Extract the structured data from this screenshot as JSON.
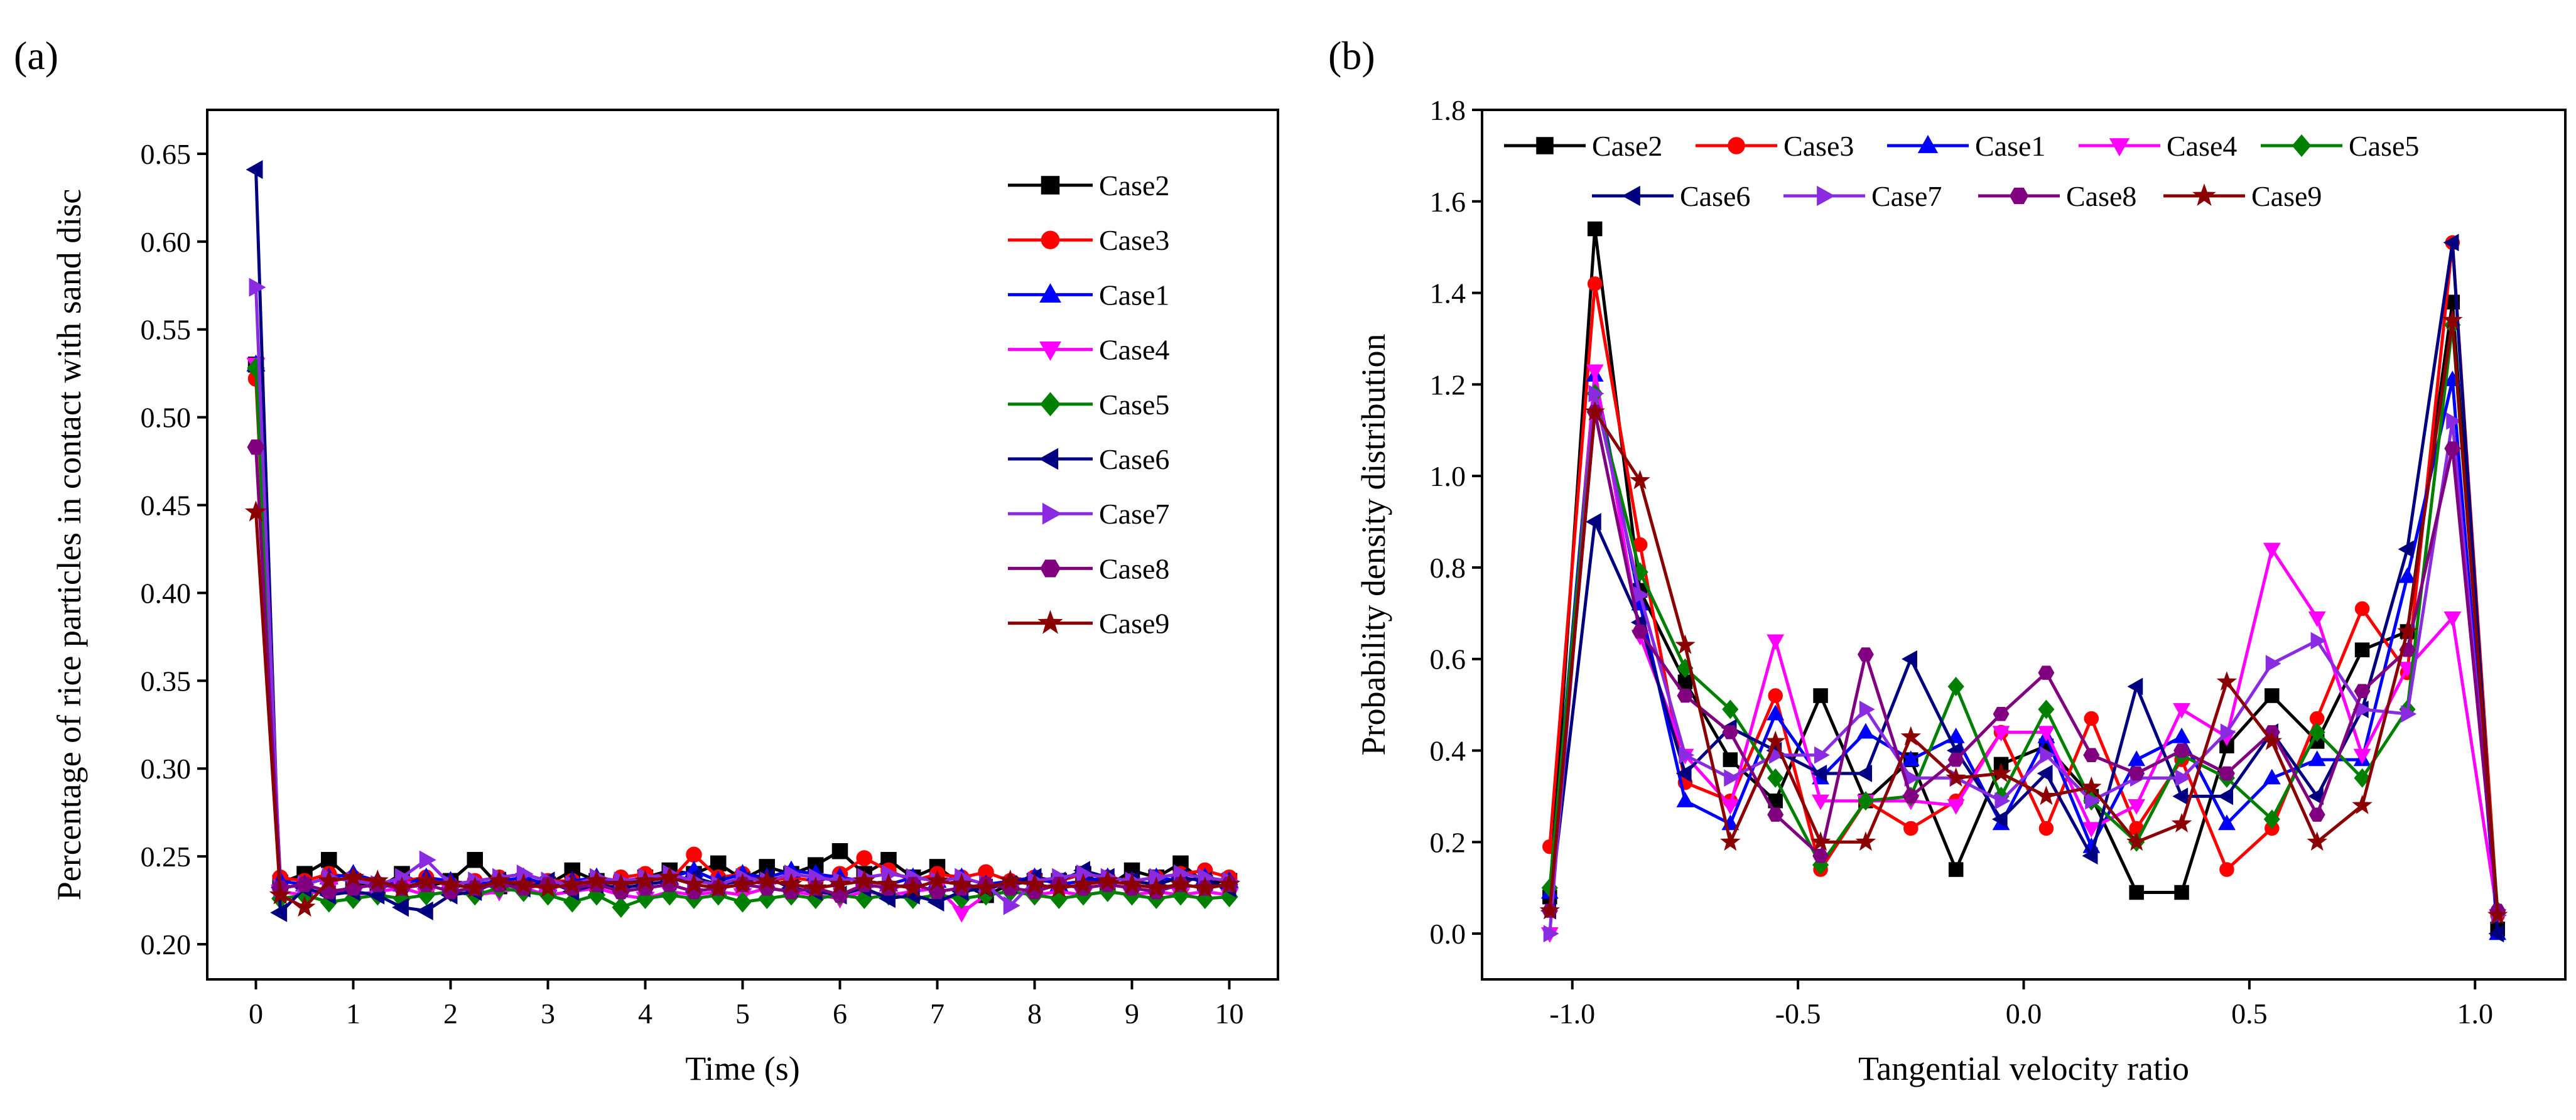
{
  "chart_data": [
    {
      "panel": "(a)",
      "type": "line",
      "title": "",
      "xlabel": "Time (s)",
      "ylabel": "Percentage of rice particles in contact with sand disc",
      "xlim": [
        -0.5,
        10.5
      ],
      "ylim": [
        0.18,
        0.675
      ],
      "xticks": [
        "0",
        "1",
        "2",
        "3",
        "4",
        "5",
        "6",
        "7",
        "8",
        "9",
        "10"
      ],
      "yticks": [
        "0.20",
        "0.25",
        "0.30",
        "0.35",
        "0.40",
        "0.45",
        "0.50",
        "0.55",
        "0.60",
        "0.65"
      ],
      "grid": false,
      "legend": "top-right",
      "x": [
        0,
        0.25,
        0.5,
        0.75,
        1,
        1.25,
        1.5,
        1.75,
        2,
        2.25,
        2.5,
        2.75,
        3,
        3.25,
        3.5,
        3.75,
        4,
        4.25,
        4.5,
        4.75,
        5,
        5.25,
        5.5,
        5.75,
        6,
        6.25,
        6.5,
        6.75,
        7,
        7.25,
        7.5,
        7.75,
        8,
        8.25,
        8.5,
        8.75,
        9,
        9.25,
        9.5,
        9.75,
        10
      ],
      "series": [
        {
          "name": "Case2",
          "color": "#000000",
          "marker": "square",
          "values": [
            0.53,
            0.235,
            0.24,
            0.248,
            0.236,
            0.232,
            0.24,
            0.233,
            0.236,
            0.248,
            0.233,
            0.236,
            0.234,
            0.242,
            0.236,
            0.234,
            0.238,
            0.242,
            0.24,
            0.246,
            0.237,
            0.244,
            0.24,
            0.245,
            0.253,
            0.24,
            0.248,
            0.238,
            0.244,
            0.234,
            0.228,
            0.234,
            0.236,
            0.236,
            0.24,
            0.233,
            0.242,
            0.238,
            0.246,
            0.235,
            0.236
          ]
        },
        {
          "name": "Case3",
          "color": "#ff0000",
          "marker": "circle",
          "values": [
            0.522,
            0.238,
            0.236,
            0.24,
            0.238,
            0.234,
            0.236,
            0.238,
            0.234,
            0.236,
            0.238,
            0.234,
            0.236,
            0.236,
            0.232,
            0.238,
            0.24,
            0.236,
            0.251,
            0.238,
            0.24,
            0.236,
            0.238,
            0.236,
            0.24,
            0.249,
            0.242,
            0.236,
            0.24,
            0.238,
            0.241,
            0.236,
            0.238,
            0.236,
            0.24,
            0.238,
            0.236,
            0.238,
            0.24,
            0.242,
            0.238
          ]
        },
        {
          "name": "Case1",
          "color": "#0000ff",
          "marker": "triangle-up",
          "values": [
            0.53,
            0.236,
            0.234,
            0.238,
            0.24,
            0.236,
            0.234,
            0.238,
            0.236,
            0.234,
            0.236,
            0.238,
            0.234,
            0.236,
            0.238,
            0.234,
            0.236,
            0.238,
            0.242,
            0.236,
            0.24,
            0.238,
            0.242,
            0.24,
            0.238,
            0.236,
            0.234,
            0.238,
            0.236,
            0.238,
            0.234,
            0.236,
            0.238,
            0.234,
            0.236,
            0.238,
            0.236,
            0.238,
            0.236,
            0.238,
            0.236
          ]
        },
        {
          "name": "Case4",
          "color": "#ff00ff",
          "marker": "triangle-down",
          "values": [
            0.53,
            0.23,
            0.228,
            0.232,
            0.228,
            0.23,
            0.232,
            0.228,
            0.23,
            0.228,
            0.23,
            0.232,
            0.228,
            0.23,
            0.232,
            0.228,
            0.226,
            0.23,
            0.228,
            0.23,
            0.228,
            0.232,
            0.23,
            0.228,
            0.226,
            0.23,
            0.228,
            0.23,
            0.232,
            0.218,
            0.228,
            0.23,
            0.228,
            0.23,
            0.228,
            0.23,
            0.228,
            0.23,
            0.228,
            0.23,
            0.228
          ]
        },
        {
          "name": "Case5",
          "color": "#008000",
          "marker": "diamond",
          "values": [
            0.528,
            0.226,
            0.228,
            0.224,
            0.226,
            0.228,
            0.226,
            0.228,
            0.23,
            0.228,
            0.232,
            0.23,
            0.228,
            0.224,
            0.228,
            0.221,
            0.226,
            0.228,
            0.226,
            0.228,
            0.224,
            0.226,
            0.228,
            0.226,
            0.228,
            0.226,
            0.228,
            0.226,
            0.228,
            0.226,
            0.228,
            0.23,
            0.228,
            0.226,
            0.228,
            0.23,
            0.228,
            0.226,
            0.228,
            0.226,
            0.227
          ]
        },
        {
          "name": "Case6",
          "color": "#000080",
          "marker": "triangle-left",
          "values": [
            0.641,
            0.218,
            0.232,
            0.228,
            0.23,
            0.228,
            0.221,
            0.219,
            0.228,
            0.23,
            0.236,
            0.232,
            0.236,
            0.23,
            0.234,
            0.232,
            0.234,
            0.236,
            0.238,
            0.234,
            0.236,
            0.238,
            0.232,
            0.23,
            0.228,
            0.232,
            0.226,
            0.228,
            0.224,
            0.23,
            0.232,
            0.234,
            0.238,
            0.236,
            0.242,
            0.238,
            0.236,
            0.234,
            0.238,
            0.236,
            0.232
          ]
        },
        {
          "name": "Case7",
          "color": "#8a2be2",
          "marker": "triangle-right",
          "values": [
            0.574,
            0.232,
            0.234,
            0.238,
            0.236,
            0.234,
            0.238,
            0.248,
            0.234,
            0.236,
            0.238,
            0.24,
            0.236,
            0.234,
            0.238,
            0.236,
            0.238,
            0.24,
            0.236,
            0.234,
            0.238,
            0.236,
            0.24,
            0.238,
            0.236,
            0.238,
            0.24,
            0.238,
            0.236,
            0.238,
            0.234,
            0.222,
            0.236,
            0.238,
            0.24,
            0.238,
            0.236,
            0.238,
            0.24,
            0.238,
            0.236
          ]
        },
        {
          "name": "Case8",
          "color": "#800080",
          "marker": "hexagon",
          "values": [
            0.483,
            0.232,
            0.234,
            0.23,
            0.232,
            0.234,
            0.232,
            0.234,
            0.23,
            0.232,
            0.234,
            0.232,
            0.234,
            0.232,
            0.234,
            0.23,
            0.232,
            0.234,
            0.23,
            0.232,
            0.234,
            0.232,
            0.23,
            0.232,
            0.228,
            0.234,
            0.232,
            0.234,
            0.23,
            0.232,
            0.234,
            0.232,
            0.23,
            0.234,
            0.232,
            0.234,
            0.232,
            0.23,
            0.234,
            0.232,
            0.234
          ]
        },
        {
          "name": "Case9",
          "color": "#8b0000",
          "marker": "star",
          "values": [
            0.446,
            0.228,
            0.221,
            0.236,
            0.238,
            0.236,
            0.232,
            0.236,
            0.234,
            0.232,
            0.236,
            0.234,
            0.232,
            0.234,
            0.236,
            0.234,
            0.236,
            0.238,
            0.234,
            0.232,
            0.234,
            0.236,
            0.234,
            0.232,
            0.234,
            0.236,
            0.234,
            0.232,
            0.236,
            0.234,
            0.232,
            0.236,
            0.234,
            0.232,
            0.234,
            0.236,
            0.234,
            0.232,
            0.234,
            0.232,
            0.234
          ]
        }
      ]
    },
    {
      "panel": "(b)",
      "type": "line",
      "title": "",
      "xlabel": "Tangential velocity ratio",
      "ylabel": "Probability density distribution",
      "xlim": [
        -1.2,
        1.2
      ],
      "ylim": [
        -0.1,
        1.8
      ],
      "xticks": [
        "-1.0",
        "-0.5",
        "0.0",
        "0.5",
        "1.0"
      ],
      "yticks": [
        "0.0",
        "0.2",
        "0.4",
        "0.6",
        "0.8",
        "1.0",
        "1.2",
        "1.4",
        "1.6",
        "1.8"
      ],
      "grid": false,
      "legend": "top",
      "x": [
        -1.05,
        -0.95,
        -0.85,
        -0.75,
        -0.65,
        -0.55,
        -0.45,
        -0.35,
        -0.25,
        -0.15,
        -0.05,
        0.05,
        0.15,
        0.25,
        0.35,
        0.45,
        0.55,
        0.65,
        0.75,
        0.85,
        0.95,
        1.05
      ],
      "series": [
        {
          "name": "Case2",
          "color": "#000000",
          "marker": "square",
          "values": [
            0.08,
            1.54,
            0.75,
            0.55,
            0.38,
            0.29,
            0.52,
            0.29,
            0.38,
            0.14,
            0.37,
            0.41,
            0.3,
            0.09,
            0.09,
            0.41,
            0.52,
            0.42,
            0.62,
            0.66,
            1.38,
            0.01
          ]
        },
        {
          "name": "Case3",
          "color": "#ff0000",
          "marker": "circle",
          "values": [
            0.19,
            1.42,
            0.85,
            0.33,
            0.29,
            0.52,
            0.14,
            0.29,
            0.23,
            0.29,
            0.44,
            0.23,
            0.47,
            0.23,
            0.38,
            0.14,
            0.23,
            0.47,
            0.71,
            0.57,
            1.51,
            0.04
          ]
        },
        {
          "name": "Case1",
          "color": "#0000ff",
          "marker": "triangle-up",
          "values": [
            0.09,
            1.22,
            0.72,
            0.29,
            0.24,
            0.48,
            0.34,
            0.44,
            0.38,
            0.43,
            0.24,
            0.43,
            0.19,
            0.38,
            0.43,
            0.24,
            0.34,
            0.38,
            0.38,
            0.78,
            1.21,
            0.0
          ]
        },
        {
          "name": "Case4",
          "color": "#ff00ff",
          "marker": "triangle-down",
          "values": [
            0.0,
            1.23,
            0.65,
            0.39,
            0.28,
            0.64,
            0.29,
            0.29,
            0.29,
            0.28,
            0.44,
            0.44,
            0.23,
            0.28,
            0.49,
            0.43,
            0.84,
            0.69,
            0.39,
            0.58,
            0.69,
            0.04
          ]
        },
        {
          "name": "Case5",
          "color": "#008000",
          "marker": "diamond",
          "values": [
            0.1,
            1.18,
            0.79,
            0.58,
            0.49,
            0.34,
            0.15,
            0.29,
            0.3,
            0.54,
            0.3,
            0.49,
            0.29,
            0.2,
            0.39,
            0.34,
            0.25,
            0.44,
            0.34,
            0.49,
            1.33,
            0.05
          ]
        },
        {
          "name": "Case6",
          "color": "#000080",
          "marker": "triangle-left",
          "values": [
            0.05,
            0.9,
            0.68,
            0.35,
            0.45,
            0.4,
            0.35,
            0.35,
            0.6,
            0.4,
            0.25,
            0.35,
            0.17,
            0.54,
            0.3,
            0.3,
            0.44,
            0.3,
            0.49,
            0.84,
            1.51,
            0.0
          ]
        },
        {
          "name": "Case7",
          "color": "#8a2be2",
          "marker": "triangle-right",
          "values": [
            0.0,
            1.18,
            0.74,
            0.39,
            0.34,
            0.39,
            0.39,
            0.49,
            0.34,
            0.34,
            0.29,
            0.39,
            0.29,
            0.34,
            0.34,
            0.44,
            0.59,
            0.64,
            0.49,
            0.48,
            1.12,
            0.04
          ]
        },
        {
          "name": "Case8",
          "color": "#800080",
          "marker": "hexagon",
          "values": [
            0.05,
            1.14,
            0.66,
            0.52,
            0.44,
            0.26,
            0.17,
            0.61,
            0.3,
            0.38,
            0.48,
            0.57,
            0.39,
            0.35,
            0.4,
            0.35,
            0.44,
            0.26,
            0.53,
            0.62,
            1.06,
            0.05
          ]
        },
        {
          "name": "Case9",
          "color": "#8b0000",
          "marker": "star",
          "values": [
            0.05,
            1.14,
            0.99,
            0.63,
            0.2,
            0.42,
            0.2,
            0.2,
            0.43,
            0.34,
            0.35,
            0.3,
            0.32,
            0.2,
            0.24,
            0.55,
            0.42,
            0.2,
            0.28,
            0.66,
            1.34,
            0.04
          ]
        }
      ]
    }
  ]
}
